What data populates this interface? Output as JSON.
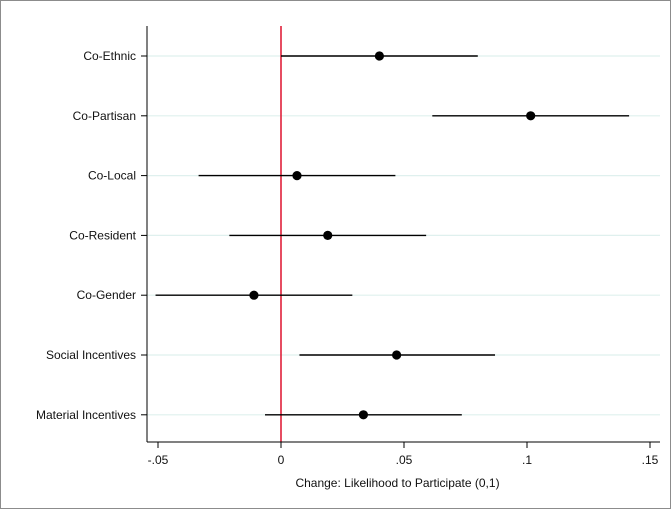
{
  "chart_data": {
    "type": "scatter",
    "subtype": "coefficient-plot-with-confidence-intervals",
    "title": "",
    "xlabel": "Change: Likelihood to Participate (0,1)",
    "ylabel": "",
    "xlim": [
      -0.05,
      0.15
    ],
    "xticks": [
      -0.05,
      0,
      0.05,
      0.1,
      0.15
    ],
    "xtick_labels": [
      "-.05",
      "0",
      ".05",
      ".1",
      ".15"
    ],
    "reference_line": {
      "x": 0,
      "color": "#e0203a"
    },
    "grid": "horizontal light lines at each category",
    "grid_color": "#dff0ee",
    "marker_color": "#000000",
    "categories": [
      "Co-Ethnic",
      "Co-Partisan",
      "Co-Local",
      "Co-Resident",
      "Co-Gender",
      "Social Incentives",
      "Material Incentives"
    ],
    "estimates": [
      0.04,
      0.1015,
      0.0065,
      0.019,
      -0.011,
      0.047,
      0.0335
    ],
    "ci_low": [
      0.0,
      0.0615,
      -0.0335,
      -0.021,
      -0.051,
      0.0075,
      -0.0065
    ],
    "ci_high": [
      0.08,
      0.1415,
      0.0465,
      0.059,
      0.029,
      0.087,
      0.0735
    ]
  }
}
